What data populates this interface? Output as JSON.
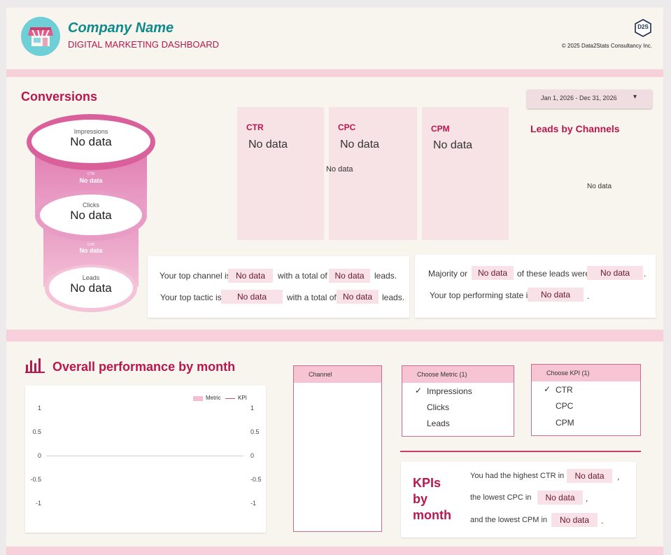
{
  "header": {
    "company_name": "Company Name",
    "subtitle": "DIGITAL MARKETING DASHBOARD",
    "copyright": "© 2025 Data2Stats Consultancy Inc.",
    "logo_text": "D2S"
  },
  "conversions": {
    "title": "Conversions",
    "date_range": "Jan 1, 2026 - Dec 31, 2026",
    "funnel": {
      "impressions_label": "Impressions",
      "impressions_value": "No data",
      "rate1_label": "CTR",
      "rate1_value": "No data",
      "clicks_label": "Clicks",
      "clicks_value": "No data",
      "rate2_label": "CVR",
      "rate2_value": "No data",
      "leads_label": "Leads",
      "leads_value": "No data"
    },
    "cards": [
      {
        "label": "CTR",
        "value": "No data"
      },
      {
        "label": "CPC",
        "value": "No data"
      },
      {
        "label": "CPM",
        "value": "No data"
      }
    ],
    "cards_center_note": "No data",
    "leads_by_channels_title": "Leads by Channels",
    "leads_by_channels_value": "No data"
  },
  "summary_left": {
    "line1_a": "Your top channel is",
    "line1_chip1": "No data",
    "line1_b": "with a total of",
    "line1_chip2": "No data",
    "line1_c": "leads.",
    "line2_a": "Your top tactic is",
    "line2_chip1": "No data",
    "line2_b": "with a  total of",
    "line2_chip2": "No data",
    "line2_c": "leads."
  },
  "summary_right": {
    "line1_a": "Majority or",
    "line1_chip1": "No data",
    "line1_b": "of these leads were",
    "line1_chip2": "No data",
    "line1_c": ".",
    "line2_a": "Your top performing state is",
    "line2_chip1": "No data",
    "line2_c": "."
  },
  "performance": {
    "title": "Overall performance by month",
    "legend": {
      "metric": "Metric",
      "kpi": "KPI"
    },
    "chart_data": {
      "type": "bar",
      "categories": [],
      "series": [
        {
          "name": "Metric",
          "values": []
        },
        {
          "name": "KPI",
          "values": []
        }
      ],
      "yticks_left": [
        "1",
        "0.5",
        "0",
        "-0.5",
        "-1"
      ],
      "yticks_right": [
        "1",
        "0.5",
        "0",
        "-0.5",
        "-1"
      ],
      "ylim": [
        -1,
        1
      ]
    },
    "channel_header": "Channel",
    "metric_filter": {
      "header": "Choose Metric (1)",
      "options": [
        "Impressions",
        "Clicks",
        "Leads"
      ],
      "selected": "Impressions"
    },
    "kpi_filter": {
      "header": "Choose KPI (1)",
      "options": [
        "CTR",
        "CPC",
        "CPM"
      ],
      "selected": "CTR"
    }
  },
  "kpis_by_month": {
    "title_line1": "KPIs",
    "title_line2": "by",
    "title_line3": "month",
    "line1_a": "You had the highest CTR in",
    "line1_chip": "No data",
    "line1_c": ",",
    "line2_a": "the lowest CPC in",
    "line2_chip": "No data",
    "line2_c": ",",
    "line3_a": "and the lowest CPM in",
    "line3_chip": "No data",
    "line3_c": "."
  },
  "colors": {
    "accent": "#b8174f",
    "teal": "#0f8a8a",
    "band": "#f7d0dc",
    "card": "#f7e2e6",
    "funnel": "#d9609a"
  }
}
